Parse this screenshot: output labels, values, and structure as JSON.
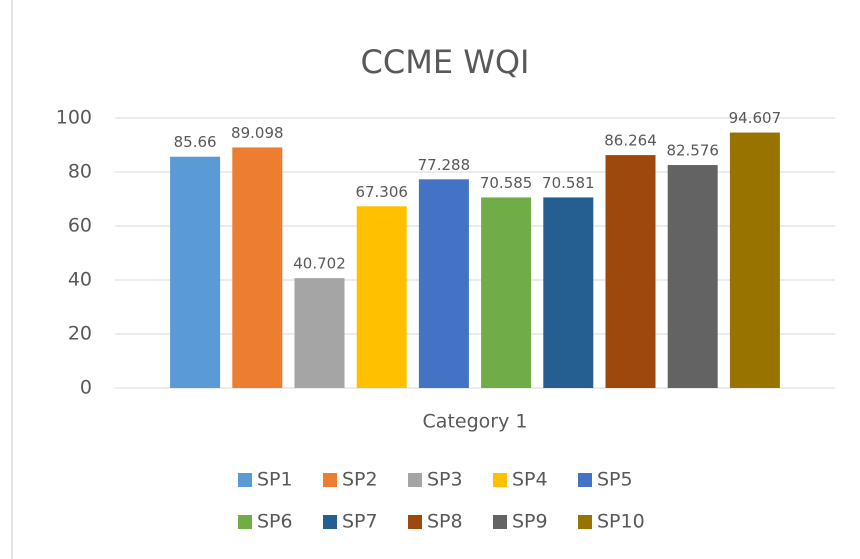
{
  "chart_data": {
    "type": "bar",
    "title": "CCME WQI",
    "categories": [
      "Category 1"
    ],
    "series": [
      {
        "name": "SP1",
        "color": "#5b9bd5",
        "values": [
          85.66
        ]
      },
      {
        "name": "SP2",
        "color": "#ed7d31",
        "values": [
          89.098
        ]
      },
      {
        "name": "SP3",
        "color": "#a5a5a5",
        "values": [
          40.702
        ]
      },
      {
        "name": "SP4",
        "color": "#ffc000",
        "values": [
          67.306
        ]
      },
      {
        "name": "SP5",
        "color": "#4472c4",
        "values": [
          77.288
        ]
      },
      {
        "name": "SP6",
        "color": "#70ad47",
        "values": [
          70.585
        ]
      },
      {
        "name": "SP7",
        "color": "#255e91",
        "values": [
          70.581
        ]
      },
      {
        "name": "SP8",
        "color": "#9e480e",
        "values": [
          86.264
        ]
      },
      {
        "name": "SP9",
        "color": "#636363",
        "values": [
          82.576
        ]
      },
      {
        "name": "SP10",
        "color": "#997300",
        "values": [
          94.607
        ]
      }
    ],
    "ylim": [
      0,
      100
    ],
    "yticks": [
      0,
      20,
      40,
      60,
      80,
      100
    ],
    "grid": true,
    "legend": "bottom"
  }
}
